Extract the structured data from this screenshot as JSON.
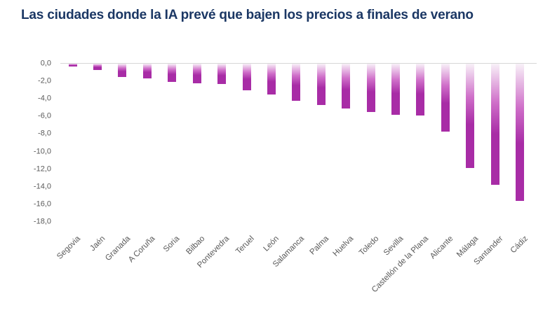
{
  "title": "Las ciudades donde la IA prevé que bajen los precios a finales de verano",
  "colors": {
    "title": "#1b3764",
    "axis_labels": "#595959",
    "zero_line": "#d7d7d7",
    "bar_top": "#f8f1f8",
    "bar_mid": "#cf6fc9",
    "bar_bottom": "#a82ca6"
  },
  "chart_data": {
    "type": "bar",
    "title": "Las ciudades donde la IA prevé que bajen los precios a finales de verano",
    "categories": [
      "Segovia",
      "Jaén",
      "Granada",
      "A Coruña",
      "Soria",
      "Bilbao",
      "Pontevedra",
      "Teruel",
      "León",
      "Salamanca",
      "Palma",
      "Huelva",
      "Toledo",
      "Sevilla",
      "Castellón de la Plana",
      "Alicante",
      "Málaga",
      "Santander",
      "Cádiz"
    ],
    "values": [
      -0.3,
      -0.7,
      -1.5,
      -1.7,
      -2.1,
      -2.2,
      -2.3,
      -3.0,
      -3.5,
      -4.2,
      -4.7,
      -5.1,
      -5.5,
      -5.8,
      -5.9,
      -7.7,
      -11.9,
      -13.8,
      -15.6
    ],
    "xlabel": "",
    "ylabel": "",
    "ylim": [
      -18,
      0
    ],
    "ytick_step": -2,
    "ytick_labels": [
      "0,0",
      "-2,0",
      "-4,0",
      "-6,0",
      "-8,0",
      "-10,0",
      "-12,0",
      "-14,0",
      "-16,0",
      "-18,0"
    ],
    "decimal_separator": ",",
    "grid": false,
    "legend": false,
    "bar_orientation": "vertical",
    "bar_gradient": "light-at-zero to magenta at bar end",
    "x_label_rotation_deg": -45
  }
}
